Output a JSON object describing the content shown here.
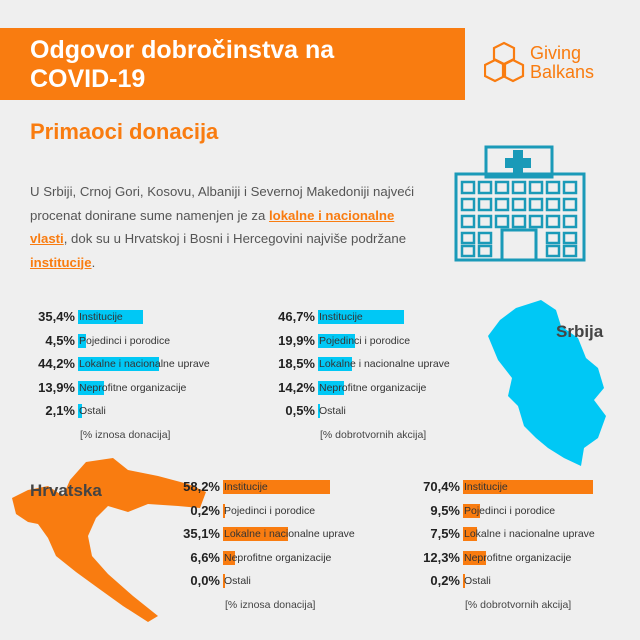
{
  "header": {
    "title_line1": "Odgovor dobročinstva na",
    "title_line2": "COVID-19"
  },
  "logo": {
    "line1": "Giving",
    "line2": "Balkans"
  },
  "subtitle": "Primaoci donacija",
  "paragraph": {
    "p1": "U Srbiji, Crnoj Gori, Kosovu, Albaniji i Severnoj Makedoniji najveći procenat donirane sume namenjen je za ",
    "h1": "lokalne i nacionalne vlasti",
    "p2": ", dok su u Hrvatskoj i Bosni i Hercegovini najviše podržane ",
    "h2": "institucije",
    "p3": "."
  },
  "maps": {
    "serbia": "Srbija",
    "croatia": "Hrvatska"
  },
  "colors": {
    "orange": "#f97c10",
    "cyan": "#00c8f5",
    "hospital": "#1a9ab8"
  },
  "chart_data": [
    {
      "type": "bar",
      "orientation": "horizontal",
      "region": "Srbija",
      "categories": [
        "Institucije",
        "Pojedinci i porodice",
        "Lokalne i nacionalne uprave",
        "Neprofitne organizacije",
        "Ostali"
      ],
      "values": [
        35.4,
        4.5,
        44.2,
        13.9,
        2.1
      ],
      "labels": [
        "35,4%",
        "4,5%",
        "44,2%",
        "13,9%",
        "2,1%"
      ],
      "xlabel": "[% iznosa donacija]",
      "color": "#00c8f5"
    },
    {
      "type": "bar",
      "orientation": "horizontal",
      "region": "Srbija",
      "categories": [
        "Institucije",
        "Pojedinci i porodice",
        "Lokalne i nacionalne uprave",
        "Neprofitne organizacije",
        "Ostali"
      ],
      "values": [
        46.7,
        19.9,
        18.5,
        14.2,
        0.5
      ],
      "labels": [
        "46,7%",
        "19,9%",
        "18,5%",
        "14,2%",
        "0,5%"
      ],
      "xlabel": "[% dobrotvornih akcija]",
      "color": "#00c8f5"
    },
    {
      "type": "bar",
      "orientation": "horizontal",
      "region": "Hrvatska",
      "categories": [
        "Institucije",
        "Pojedinci i porodice",
        "Lokalne i nacionalne uprave",
        "Neprofitne organizacije",
        "Ostali"
      ],
      "values": [
        58.2,
        0.2,
        35.1,
        6.6,
        0.0
      ],
      "labels": [
        "58,2%",
        "0,2%",
        "35,1%",
        "6,6%",
        "0,0%"
      ],
      "xlabel": "[% iznosa donacija]",
      "color": "#f97c10"
    },
    {
      "type": "bar",
      "orientation": "horizontal",
      "region": "Hrvatska",
      "categories": [
        "Institucije",
        "Pojedinci i porodice",
        "Lokalne i nacionalne uprave",
        "Neprofitne organizacije",
        "Ostali"
      ],
      "values": [
        70.4,
        9.5,
        7.5,
        12.3,
        0.2
      ],
      "labels": [
        "70,4%",
        "9,5%",
        "7,5%",
        "12,3%",
        "0,2%"
      ],
      "xlabel": "[% dobrotvornih akcija]",
      "color": "#f97c10"
    }
  ]
}
